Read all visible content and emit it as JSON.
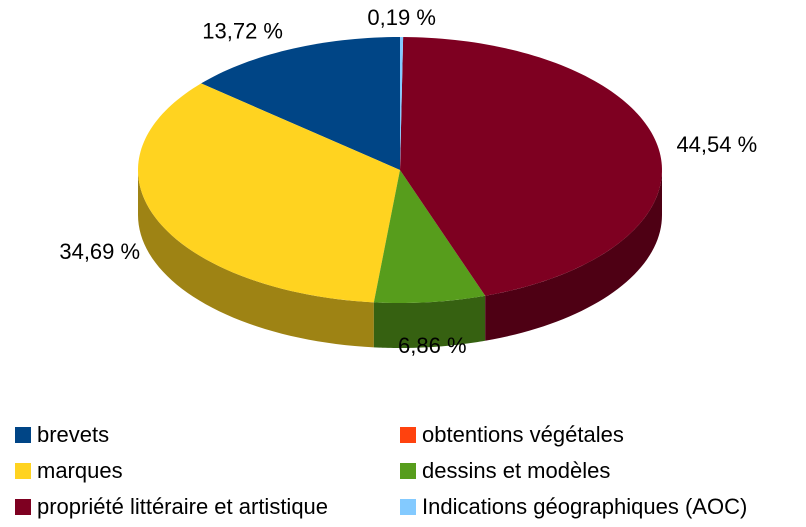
{
  "chart_data": {
    "type": "pie",
    "three_d": true,
    "categories": [
      "brevets",
      "obtentions végétales",
      "marques",
      "dessins et modèles",
      "propriété littéraire et artistique",
      "Indications géographiques (AOC)"
    ],
    "values": [
      13.72,
      0,
      34.69,
      6.86,
      44.54,
      0.19
    ],
    "value_labels": [
      "13,72 %",
      null,
      "34,69 %",
      "6,86 %",
      "44,54 %",
      "0,19 %"
    ],
    "colors": [
      "#004586",
      "#ff420e",
      "#ffd320",
      "#579d1c",
      "#7e0021",
      "#83caff"
    ],
    "legend": "bottom"
  }
}
